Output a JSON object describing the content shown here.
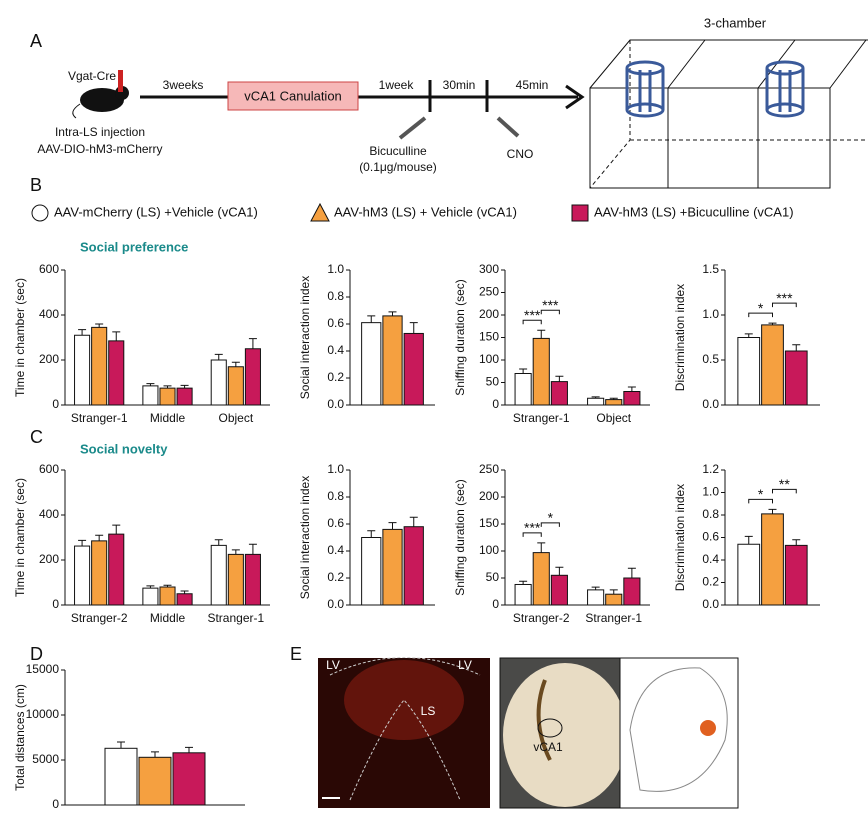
{
  "panels": {
    "a": "A",
    "b": "B",
    "c": "C",
    "d": "D",
    "e": "E"
  },
  "schematic": {
    "mouse_line": "Vgat-Cre",
    "injection": "Intra-LS injection",
    "virus": "AAV-DIO-hM3-mCherry",
    "step1": "3weeks",
    "box": "vCA1 Canulation",
    "step2": "1week",
    "step3": "30min",
    "step4": "45min",
    "drug1": "Bicuculline",
    "dose": "(0.1μg/mouse)",
    "drug2": "CNO",
    "arena": "3-chamber"
  },
  "subtitles": {
    "b": "Social preference",
    "c": "Social novelty"
  },
  "histology": {
    "lv1": "LV",
    "lv2": "LV",
    "ls": "LS",
    "vca1": "vCA1"
  },
  "chart_data": [
    {
      "type": "bar",
      "ylabel": "Time in chamber (sec)",
      "categories": [
        "Stranger-1",
        "Middle",
        "Object"
      ],
      "ylim": [
        0,
        600
      ],
      "yticks": [
        0,
        200,
        400,
        600
      ],
      "series": [
        {
          "name": "AAV-mCherry (LS) +Vehicle (vCA1)",
          "color": "#ffffff",
          "values": [
            310,
            85,
            200
          ],
          "errors": [
            25,
            10,
            25
          ]
        },
        {
          "name": "AAV-hM3 (LS) + Vehicle (vCA1)",
          "color": "#f5a040",
          "values": [
            345,
            75,
            170
          ],
          "errors": [
            15,
            10,
            20
          ]
        },
        {
          "name": "AAV-hM3 (LS) +Bicuculline (vCA1)",
          "color": "#c8195a",
          "values": [
            285,
            75,
            250
          ],
          "errors": [
            40,
            12,
            45
          ]
        }
      ]
    },
    {
      "type": "bar",
      "ylabel": "Social interaction index",
      "ylim": [
        0,
        1
      ],
      "yticks": [
        {
          "value": 0,
          "label": "0.0"
        },
        0.2,
        0.4,
        0.6,
        0.8,
        {
          "value": 1,
          "label": "1.0"
        }
      ],
      "series": [
        {
          "name": "AAV-mCherry (LS) +Vehicle (vCA1)",
          "color": "#ffffff",
          "values": [
            0.61
          ],
          "errors": [
            0.05
          ]
        },
        {
          "name": "AAV-hM3 (LS) + Vehicle (vCA1)",
          "color": "#f5a040",
          "values": [
            0.66
          ],
          "errors": [
            0.03
          ]
        },
        {
          "name": "AAV-hM3 (LS) +Bicuculline (vCA1)",
          "color": "#c8195a",
          "values": [
            0.53
          ],
          "errors": [
            0.08
          ]
        }
      ]
    },
    {
      "type": "bar",
      "ylabel": "Sniffing duration (sec)",
      "categories": [
        "Stranger-1",
        "Object"
      ],
      "ylim": [
        0,
        300
      ],
      "yticks": [
        0,
        50,
        100,
        150,
        200,
        250,
        300
      ],
      "annotations": [
        "***",
        "***"
      ],
      "series": [
        {
          "name": "AAV-mCherry (LS) +Vehicle (vCA1)",
          "color": "#ffffff",
          "values": [
            70,
            15
          ],
          "errors": [
            10,
            3
          ]
        },
        {
          "name": "AAV-hM3 (LS) + Vehicle (vCA1)",
          "color": "#f5a040",
          "values": [
            148,
            12
          ],
          "errors": [
            18,
            3
          ]
        },
        {
          "name": "AAV-hM3 (LS) +Bicuculline (vCA1)",
          "color": "#c8195a",
          "values": [
            52,
            30
          ],
          "errors": [
            12,
            10
          ]
        }
      ]
    },
    {
      "type": "bar",
      "ylabel": "Discrimination index",
      "ylim": [
        0,
        1.5
      ],
      "yticks": [
        {
          "value": 0,
          "label": "0.0"
        },
        0.5,
        {
          "value": 1,
          "label": "1.0"
        },
        1.5
      ],
      "annotations": [
        "*",
        "***"
      ],
      "series": [
        {
          "name": "AAV-mCherry (LS) +Vehicle (vCA1)",
          "color": "#ffffff",
          "values": [
            0.75
          ],
          "errors": [
            0.04
          ]
        },
        {
          "name": "AAV-hM3 (LS) + Vehicle (vCA1)",
          "color": "#f5a040",
          "values": [
            0.89
          ],
          "errors": [
            0.02
          ]
        },
        {
          "name": "AAV-hM3 (LS) +Bicuculline (vCA1)",
          "color": "#c8195a",
          "values": [
            0.6
          ],
          "errors": [
            0.07
          ]
        }
      ]
    },
    {
      "type": "bar",
      "ylabel": "Time in chamber (sec)",
      "categories": [
        "Stranger-2",
        "Middle",
        "Stranger-1"
      ],
      "ylim": [
        0,
        600
      ],
      "yticks": [
        0,
        200,
        400,
        600
      ],
      "series": [
        {
          "name": "AAV-mCherry (LS) +Vehicle (vCA1)",
          "color": "#ffffff",
          "values": [
            262,
            75,
            265
          ],
          "errors": [
            25,
            10,
            25
          ]
        },
        {
          "name": "AAV-hM3 (LS) + Vehicle (vCA1)",
          "color": "#f5a040",
          "values": [
            285,
            80,
            225
          ],
          "errors": [
            25,
            8,
            20
          ]
        },
        {
          "name": "AAV-hM3 (LS) +Bicuculline (vCA1)",
          "color": "#c8195a",
          "values": [
            315,
            50,
            225
          ],
          "errors": [
            40,
            12,
            45
          ]
        }
      ]
    },
    {
      "type": "bar",
      "ylabel": "Social interaction index",
      "ylim": [
        0,
        1
      ],
      "yticks": [
        {
          "value": 0,
          "label": "0.0"
        },
        0.2,
        0.4,
        0.6,
        0.8,
        {
          "value": 1,
          "label": "1.0"
        }
      ],
      "series": [
        {
          "name": "AAV-mCherry (LS) +Vehicle (vCA1)",
          "color": "#ffffff",
          "values": [
            0.5
          ],
          "errors": [
            0.05
          ]
        },
        {
          "name": "AAV-hM3 (LS) + Vehicle (vCA1)",
          "color": "#f5a040",
          "values": [
            0.56
          ],
          "errors": [
            0.05
          ]
        },
        {
          "name": "AAV-hM3 (LS) +Bicuculline (vCA1)",
          "color": "#c8195a",
          "values": [
            0.58
          ],
          "errors": [
            0.07
          ]
        }
      ]
    },
    {
      "type": "bar",
      "ylabel": "Sniffing duration (sec)",
      "categories": [
        "Stranger-2",
        "Stranger-1"
      ],
      "ylim": [
        0,
        250
      ],
      "yticks": [
        0,
        50,
        100,
        150,
        200,
        250
      ],
      "annotations": [
        "***",
        "*"
      ],
      "series": [
        {
          "name": "AAV-mCherry (LS) +Vehicle (vCA1)",
          "color": "#ffffff",
          "values": [
            38,
            28
          ],
          "errors": [
            6,
            5
          ]
        },
        {
          "name": "AAV-hM3 (LS) + Vehicle (vCA1)",
          "color": "#f5a040",
          "values": [
            97,
            20
          ],
          "errors": [
            18,
            8
          ]
        },
        {
          "name": "AAV-hM3 (LS) +Bicuculline (vCA1)",
          "color": "#c8195a",
          "values": [
            55,
            50
          ],
          "errors": [
            15,
            18
          ]
        }
      ]
    },
    {
      "type": "bar",
      "ylabel": "Discrimination index",
      "ylim": [
        0,
        1.2
      ],
      "yticks": [
        {
          "value": 0,
          "label": "0.0"
        },
        0.2,
        0.4,
        0.6,
        0.8,
        {
          "value": 1,
          "label": "1.0"
        },
        1.2
      ],
      "annotations": [
        "*",
        "**"
      ],
      "series": [
        {
          "name": "AAV-mCherry (LS) +Vehicle (vCA1)",
          "color": "#ffffff",
          "values": [
            0.54
          ],
          "errors": [
            0.07
          ]
        },
        {
          "name": "AAV-hM3 (LS) + Vehicle (vCA1)",
          "color": "#f5a040",
          "values": [
            0.81
          ],
          "errors": [
            0.04
          ]
        },
        {
          "name": "AAV-hM3 (LS) +Bicuculline (vCA1)",
          "color": "#c8195a",
          "values": [
            0.53
          ],
          "errors": [
            0.05
          ]
        }
      ]
    },
    {
      "type": "bar",
      "ylabel": "Total distances (cm)",
      "ylim": [
        0,
        15000
      ],
      "yticks": [
        0,
        5000,
        10000,
        15000
      ],
      "series": [
        {
          "name": "AAV-mCherry (LS) +Vehicle (vCA1)",
          "color": "#ffffff",
          "values": [
            6300
          ],
          "errors": [
            700
          ]
        },
        {
          "name": "AAV-hM3 (LS) + Vehicle (vCA1)",
          "color": "#f5a040",
          "values": [
            5300
          ],
          "errors": [
            600
          ]
        },
        {
          "name": "AAV-hM3 (LS) +Bicuculline (vCA1)",
          "color": "#c8195a",
          "values": [
            5800
          ],
          "errors": [
            600
          ]
        }
      ]
    }
  ]
}
